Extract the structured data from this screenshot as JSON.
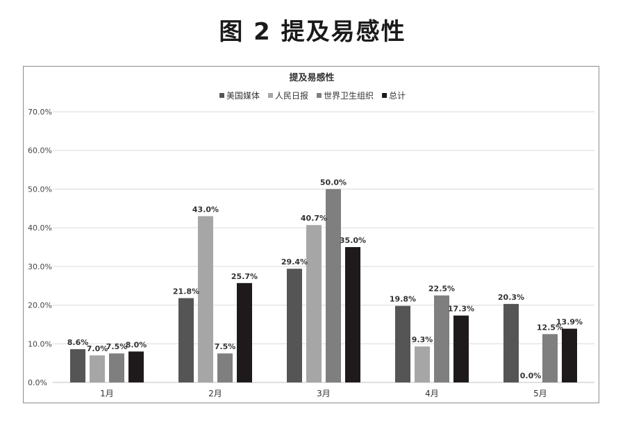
{
  "figure_caption": "图 2   提及易感性",
  "chart_data": {
    "type": "bar",
    "title": "提及易感性",
    "categories": [
      "1月",
      "2月",
      "3月",
      "4月",
      "5月"
    ],
    "series": [
      {
        "name": "美国媒体",
        "color": "#555555",
        "values": [
          8.6,
          21.8,
          29.4,
          19.8,
          20.3
        ],
        "labels": [
          "8.6%",
          "21.8%",
          "29.4%",
          "19.8%",
          "20.3%"
        ]
      },
      {
        "name": "人民日报",
        "color": "#a6a6a6",
        "values": [
          7.0,
          43.0,
          40.7,
          9.3,
          0.0
        ],
        "labels": [
          "7.0%",
          "43.0%",
          "40.7%",
          "9.3%",
          "0.0%"
        ]
      },
      {
        "name": "世界卫生组织",
        "color": "#7f7f7f",
        "values": [
          7.5,
          7.5,
          50.0,
          22.5,
          12.5
        ],
        "labels": [
          "7.5%",
          "7.5%",
          "50.0%",
          "22.5%",
          "12.5%"
        ]
      },
      {
        "name": "总计",
        "color": "#1e1a1b",
        "values": [
          8.0,
          25.7,
          35.0,
          17.3,
          13.9
        ],
        "labels": [
          "8.0%",
          "25.7%",
          "35.0%",
          "17.3%",
          "13.9%"
        ]
      }
    ],
    "ylim": [
      0,
      70
    ],
    "yticks": [
      "0.0%",
      "10.0%",
      "20.0%",
      "30.0%",
      "40.0%",
      "50.0%",
      "60.0%",
      "70.0%"
    ],
    "grid": true,
    "legend": "top"
  }
}
